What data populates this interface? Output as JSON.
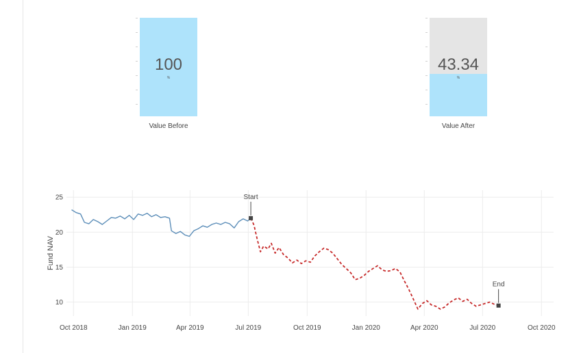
{
  "gauges": {
    "before": {
      "value": "100",
      "unit": "%",
      "caption": "Value Before",
      "fill_fraction": 1.0
    },
    "after": {
      "value": "43.34",
      "unit": "%",
      "caption": "Value After",
      "fill_fraction": 0.4334
    }
  },
  "chart_data": {
    "type": "line",
    "title": "",
    "xlabel": "",
    "ylabel": "Fund NAV",
    "grid": true,
    "ylim": [
      8,
      26
    ],
    "xlim": [
      "2018-09-20",
      "2020-10-20"
    ],
    "yticks": [
      10,
      15,
      20,
      25
    ],
    "xticks": [
      {
        "date": "2018-10-01",
        "label": "Oct 2018"
      },
      {
        "date": "2019-01-01",
        "label": "Jan 2019"
      },
      {
        "date": "2019-04-01",
        "label": "Apr 2019"
      },
      {
        "date": "2019-07-01",
        "label": "Jul 2019"
      },
      {
        "date": "2019-10-01",
        "label": "Oct 2019"
      },
      {
        "date": "2020-01-01",
        "label": "Jan 2020"
      },
      {
        "date": "2020-04-01",
        "label": "Apr 2020"
      },
      {
        "date": "2020-07-01",
        "label": "Jul 2020"
      },
      {
        "date": "2020-10-01",
        "label": "Oct 2020"
      }
    ],
    "series": [
      {
        "color": "#5b8db8",
        "style": "solid",
        "points": [
          [
            "2018-09-28",
            23.2
          ],
          [
            "2018-10-05",
            22.8
          ],
          [
            "2018-10-12",
            22.6
          ],
          [
            "2018-10-18",
            21.4
          ],
          [
            "2018-10-25",
            21.2
          ],
          [
            "2018-11-01",
            21.8
          ],
          [
            "2018-11-08",
            21.5
          ],
          [
            "2018-11-15",
            21.1
          ],
          [
            "2018-11-22",
            21.6
          ],
          [
            "2018-11-29",
            22.1
          ],
          [
            "2018-12-06",
            22.0
          ],
          [
            "2018-12-13",
            22.3
          ],
          [
            "2018-12-20",
            21.9
          ],
          [
            "2018-12-27",
            22.4
          ],
          [
            "2019-01-03",
            21.8
          ],
          [
            "2019-01-10",
            22.6
          ],
          [
            "2019-01-17",
            22.4
          ],
          [
            "2019-01-24",
            22.7
          ],
          [
            "2019-01-31",
            22.2
          ],
          [
            "2019-02-07",
            22.5
          ],
          [
            "2019-02-14",
            22.1
          ],
          [
            "2019-02-21",
            22.2
          ],
          [
            "2019-02-28",
            22.0
          ],
          [
            "2019-03-03",
            20.2
          ],
          [
            "2019-03-10",
            19.8
          ],
          [
            "2019-03-17",
            20.1
          ],
          [
            "2019-03-24",
            19.6
          ],
          [
            "2019-03-31",
            19.4
          ],
          [
            "2019-04-07",
            20.2
          ],
          [
            "2019-04-14",
            20.5
          ],
          [
            "2019-04-21",
            20.9
          ],
          [
            "2019-04-28",
            20.7
          ],
          [
            "2019-05-05",
            21.1
          ],
          [
            "2019-05-12",
            21.3
          ],
          [
            "2019-05-19",
            21.1
          ],
          [
            "2019-05-26",
            21.4
          ],
          [
            "2019-06-02",
            21.2
          ],
          [
            "2019-06-09",
            20.6
          ],
          [
            "2019-06-16",
            21.5
          ],
          [
            "2019-06-23",
            21.9
          ],
          [
            "2019-06-30",
            21.6
          ],
          [
            "2019-07-05",
            22.0
          ]
        ]
      },
      {
        "color": "#c62828",
        "style": "dashed",
        "points": [
          [
            "2019-07-05",
            22.0
          ],
          [
            "2019-07-10",
            21.0
          ],
          [
            "2019-07-15",
            19.0
          ],
          [
            "2019-07-20",
            17.2
          ],
          [
            "2019-07-25",
            18.0
          ],
          [
            "2019-08-01",
            17.6
          ],
          [
            "2019-08-06",
            18.4
          ],
          [
            "2019-08-12",
            17.0
          ],
          [
            "2019-08-18",
            17.8
          ],
          [
            "2019-08-25",
            16.8
          ],
          [
            "2019-09-01",
            16.3
          ],
          [
            "2019-09-08",
            15.6
          ],
          [
            "2019-09-15",
            16.0
          ],
          [
            "2019-09-22",
            15.5
          ],
          [
            "2019-09-29",
            15.9
          ],
          [
            "2019-10-06",
            15.7
          ],
          [
            "2019-10-13",
            16.6
          ],
          [
            "2019-10-20",
            17.2
          ],
          [
            "2019-10-27",
            17.7
          ],
          [
            "2019-11-03",
            17.5
          ],
          [
            "2019-11-10",
            17.0
          ],
          [
            "2019-11-17",
            16.2
          ],
          [
            "2019-11-24",
            15.4
          ],
          [
            "2019-12-01",
            14.8
          ],
          [
            "2019-12-08",
            14.2
          ],
          [
            "2019-12-15",
            13.2
          ],
          [
            "2019-12-22",
            13.4
          ],
          [
            "2019-12-29",
            13.8
          ],
          [
            "2020-01-05",
            14.4
          ],
          [
            "2020-01-12",
            14.8
          ],
          [
            "2020-01-19",
            15.2
          ],
          [
            "2020-01-26",
            14.6
          ],
          [
            "2020-02-02",
            14.4
          ],
          [
            "2020-02-09",
            14.5
          ],
          [
            "2020-02-16",
            14.8
          ],
          [
            "2020-02-23",
            14.3
          ],
          [
            "2020-03-01",
            13.0
          ],
          [
            "2020-03-08",
            11.8
          ],
          [
            "2020-03-15",
            10.4
          ],
          [
            "2020-03-22",
            9.0
          ],
          [
            "2020-03-29",
            9.8
          ],
          [
            "2020-04-05",
            10.2
          ],
          [
            "2020-04-12",
            9.6
          ],
          [
            "2020-04-19",
            9.4
          ],
          [
            "2020-04-26",
            9.0
          ],
          [
            "2020-05-03",
            9.3
          ],
          [
            "2020-05-10",
            9.9
          ],
          [
            "2020-05-17",
            10.3
          ],
          [
            "2020-05-24",
            10.6
          ],
          [
            "2020-05-31",
            10.1
          ],
          [
            "2020-06-07",
            10.4
          ],
          [
            "2020-06-14",
            9.8
          ],
          [
            "2020-06-21",
            9.4
          ],
          [
            "2020-06-28",
            9.6
          ],
          [
            "2020-07-05",
            9.8
          ],
          [
            "2020-07-12",
            10.0
          ],
          [
            "2020-07-19",
            9.7
          ],
          [
            "2020-07-26",
            9.5
          ]
        ]
      }
    ],
    "annotations": [
      {
        "text": "Start",
        "date": "2019-07-05",
        "y": 22.0
      },
      {
        "text": "End",
        "date": "2020-07-26",
        "y": 9.5
      }
    ]
  }
}
